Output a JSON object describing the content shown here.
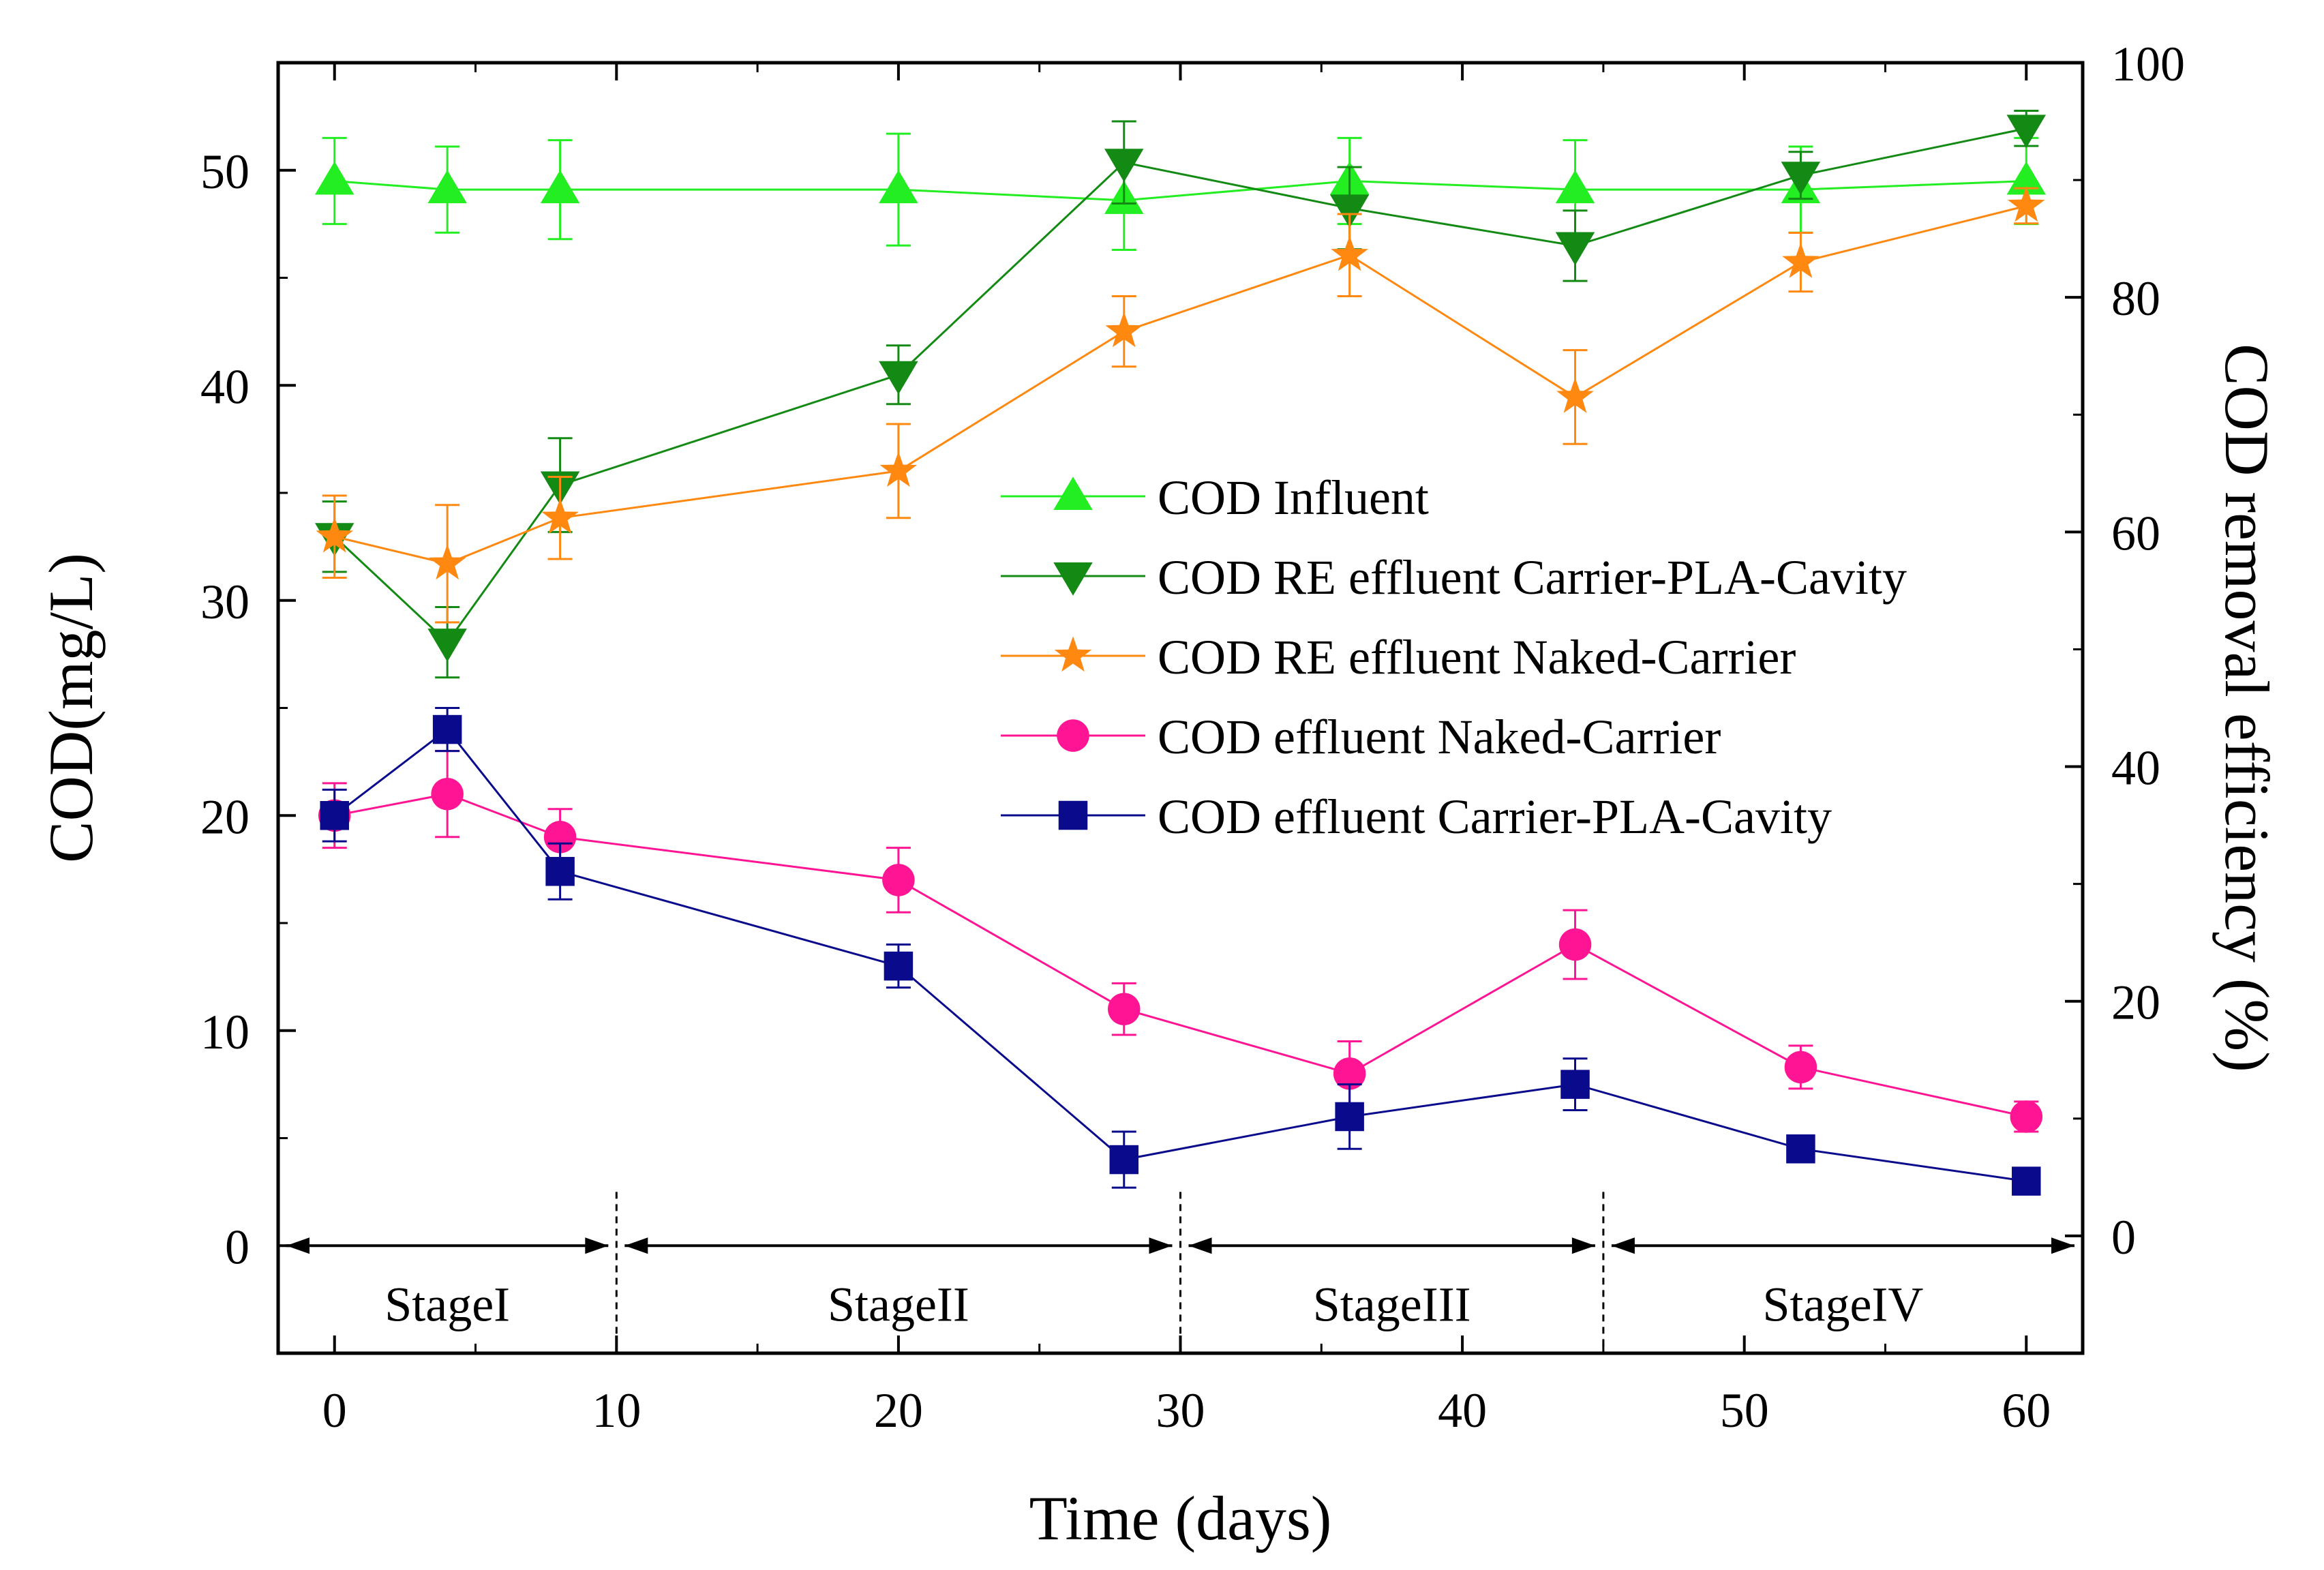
{
  "chart_data": {
    "type": "line",
    "xlabel": "Time (days)",
    "ylabel": "COD(mg/L)",
    "y2label": "COD removal efficiency (%)",
    "xlim": [
      -2,
      62
    ],
    "ylim": [
      -5,
      55
    ],
    "y2lim": [
      -10,
      100
    ],
    "xticks": [
      0,
      10,
      20,
      30,
      40,
      50,
      60
    ],
    "yticks": [
      0,
      10,
      20,
      30,
      40,
      50
    ],
    "y2ticks": [
      0,
      20,
      40,
      60,
      80,
      100
    ],
    "legend_position": "center-right",
    "series": [
      {
        "name": "COD Influent",
        "axis": "left",
        "color": "#22ee22",
        "marker": "triangle-up",
        "x": [
          0,
          4,
          8,
          20,
          28,
          36,
          44,
          52,
          60
        ],
        "y": [
          49.5,
          49.1,
          49.1,
          49.1,
          48.6,
          49.5,
          49.1,
          49.1,
          49.5
        ],
        "err": [
          2.0,
          2.0,
          2.3,
          2.6,
          2.3,
          2.0,
          2.3,
          2.0,
          2.0
        ]
      },
      {
        "name": "COD RE effluent Carrier-PLA-Cavity",
        "axis": "right",
        "color": "#138a13",
        "marker": "triangle-down",
        "x": [
          0,
          4,
          8,
          20,
          28,
          36,
          44,
          52,
          60
        ],
        "y": [
          59.6,
          50.6,
          64.0,
          73.4,
          91.5,
          87.6,
          84.4,
          90.4,
          94.4
        ],
        "err": [
          3.0,
          3.0,
          4.0,
          2.5,
          3.5,
          3.5,
          3.0,
          2.0,
          1.5
        ]
      },
      {
        "name": "COD RE effluent Naked-Carrier",
        "axis": "right",
        "color": "#ff8811",
        "marker": "star",
        "x": [
          0,
          4,
          8,
          20,
          28,
          36,
          44,
          52,
          60
        ],
        "y": [
          59.6,
          57.3,
          61.2,
          65.2,
          77.1,
          83.6,
          71.5,
          83.0,
          87.8
        ],
        "err": [
          3.5,
          5.0,
          3.5,
          4.0,
          3.0,
          3.5,
          4.0,
          2.5,
          1.5
        ]
      },
      {
        "name": "COD effluent Naked-Carrier",
        "axis": "left",
        "color": "#ff1493",
        "marker": "circle",
        "x": [
          0,
          4,
          8,
          20,
          28,
          36,
          44,
          52,
          60
        ],
        "y": [
          20,
          21,
          19,
          17,
          11,
          8,
          14,
          8.3,
          6
        ],
        "err": [
          1.5,
          2.0,
          1.3,
          1.5,
          1.2,
          1.5,
          1.6,
          1.0,
          0.7
        ]
      },
      {
        "name": "COD effluent Carrier-PLA-Cavity",
        "axis": "left",
        "color": "#0a0a8c",
        "marker": "square",
        "x": [
          0,
          4,
          8,
          20,
          28,
          36,
          44,
          52,
          60
        ],
        "y": [
          20,
          24,
          17.4,
          13,
          4,
          6,
          7.5,
          4.5,
          3
        ],
        "err": [
          1.2,
          1.0,
          1.3,
          1.0,
          1.3,
          1.5,
          1.2,
          0.5,
          0.3
        ]
      }
    ],
    "stages": [
      {
        "label": "StageI",
        "start": -2,
        "end": 10
      },
      {
        "label": "StageII",
        "start": 10,
        "end": 30
      },
      {
        "label": "StageIII",
        "start": 30,
        "end": 45
      },
      {
        "label": "StageIV",
        "start": 45,
        "end": 62
      }
    ],
    "stage_dividers": [
      10,
      30,
      45
    ]
  }
}
